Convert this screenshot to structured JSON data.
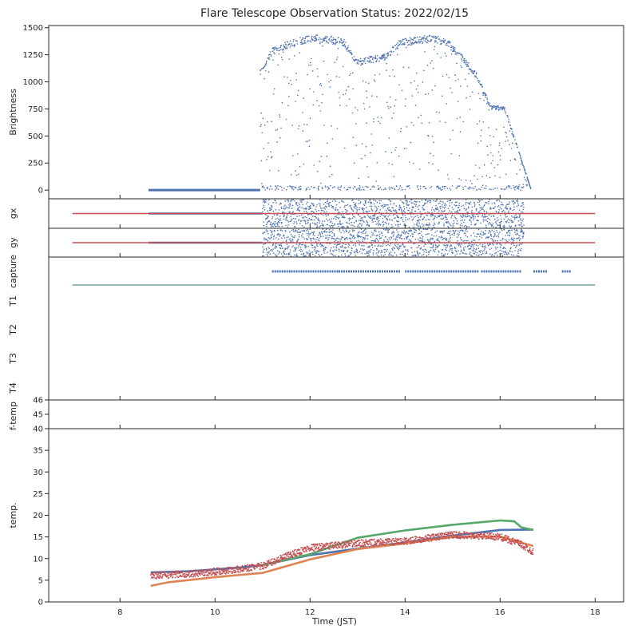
{
  "chart_data": {
    "type": "scatter",
    "title": "Flare Telescope Observation Status: 2022/02/15",
    "xlabel": "Time (JST)",
    "xlim": [
      6.5,
      18.6
    ],
    "xticks": [
      8,
      10,
      12,
      14,
      16,
      18
    ],
    "colors": {
      "blue": "#4c72b0",
      "orange": "#dd8452",
      "green": "#55a868",
      "red": "#c44e52",
      "teal": "#2b6f7e"
    },
    "panels": [
      {
        "id": "brightness",
        "ylabel": "Brightness",
        "ylim": [
          -80,
          1520
        ],
        "yticks": [
          0,
          250,
          500,
          750,
          1000,
          1250,
          1500
        ],
        "zero_band": [
          8.6,
          10.95
        ],
        "envelope": [
          [
            10.95,
            1100
          ],
          [
            11.2,
            1300
          ],
          [
            11.5,
            1360
          ],
          [
            11.8,
            1400
          ],
          [
            12.1,
            1430
          ],
          [
            12.4,
            1410
          ],
          [
            12.7,
            1390
          ],
          [
            13.0,
            1200
          ],
          [
            13.6,
            1250
          ],
          [
            13.9,
            1380
          ],
          [
            14.3,
            1410
          ],
          [
            14.6,
            1420
          ],
          [
            14.9,
            1380
          ],
          [
            15.2,
            1240
          ],
          [
            15.5,
            1080
          ],
          [
            15.8,
            780
          ],
          [
            16.1,
            760
          ],
          [
            16.4,
            350
          ],
          [
            16.65,
            10
          ]
        ]
      },
      {
        "id": "gx",
        "ylabel": "gx",
        "noise_range": [
          11.0,
          16.5
        ],
        "line_range": [
          7.0,
          18.0
        ],
        "baseline_range": [
          8.6,
          11.0
        ]
      },
      {
        "id": "gy",
        "ylabel": "gy",
        "noise_range": [
          11.0,
          16.5
        ],
        "line_range": [
          7.0,
          18.0
        ],
        "baseline_range": [
          8.6,
          11.0
        ]
      },
      {
        "id": "status",
        "ylabels": [
          "capture",
          "T1",
          "T2",
          "T3",
          "T4"
        ],
        "capture_segments": [
          [
            11.2,
            11.6
          ],
          [
            11.6,
            12.6
          ],
          [
            12.6,
            13.9
          ],
          [
            14.0,
            15.55
          ],
          [
            15.6,
            16.45
          ],
          [
            16.7,
            17.0
          ],
          [
            17.3,
            17.5
          ]
        ],
        "t1_range": [
          7.0,
          18.0
        ]
      },
      {
        "id": "ftemp",
        "ylabel": "f-temp",
        "ylim": [
          44,
          46
        ],
        "yticks": [
          45,
          46
        ]
      },
      {
        "id": "temp",
        "ylabel": "temp.",
        "ylim": [
          0,
          40
        ],
        "yticks": [
          0,
          5,
          10,
          15,
          20,
          25,
          30,
          35,
          40
        ],
        "series": [
          {
            "color": "blue",
            "points": [
              [
                8.65,
                6.8
              ],
              [
                9.5,
                7.1
              ],
              [
                10.5,
                7.9
              ],
              [
                11.0,
                8.5
              ],
              [
                12.0,
                10.8
              ],
              [
                13.0,
                12.3
              ],
              [
                14.0,
                13.7
              ],
              [
                15.0,
                15.3
              ],
              [
                16.0,
                16.6
              ],
              [
                16.7,
                16.7
              ]
            ]
          },
          {
            "color": "green",
            "points": [
              [
                11.0,
                8.5
              ],
              [
                12.0,
                11.0
              ],
              [
                13.0,
                14.8
              ],
              [
                14.0,
                16.5
              ],
              [
                15.0,
                17.8
              ],
              [
                16.0,
                18.8
              ],
              [
                16.3,
                18.6
              ],
              [
                16.45,
                17.2
              ],
              [
                16.7,
                16.6
              ]
            ]
          },
          {
            "color": "orange",
            "points": [
              [
                8.65,
                3.7
              ],
              [
                9.0,
                4.5
              ],
              [
                10.0,
                5.7
              ],
              [
                11.0,
                6.7
              ],
              [
                12.0,
                9.8
              ],
              [
                13.0,
                12.2
              ],
              [
                14.0,
                13.5
              ],
              [
                15.0,
                15.0
              ],
              [
                16.0,
                15.1
              ],
              [
                16.7,
                12.9
              ]
            ]
          },
          {
            "color": "red",
            "scatter": true,
            "points": [
              [
                8.65,
                6.1
              ],
              [
                9.5,
                6.5
              ],
              [
                10.5,
                7.5
              ],
              [
                11.0,
                8.3
              ],
              [
                11.5,
                10.5
              ],
              [
                12.0,
                12.5
              ],
              [
                13.0,
                13.5
              ],
              [
                14.0,
                14.0
              ],
              [
                15.0,
                15.5
              ],
              [
                16.0,
                15.0
              ],
              [
                16.4,
                13.5
              ],
              [
                16.7,
                11.5
              ]
            ]
          }
        ]
      }
    ]
  }
}
